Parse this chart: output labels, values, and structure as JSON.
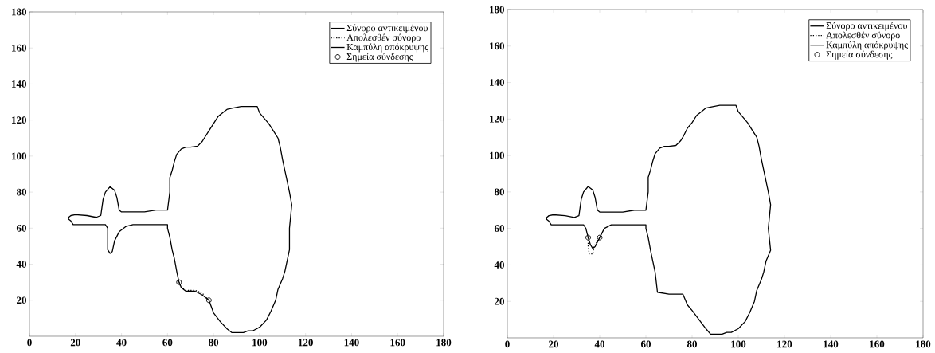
{
  "chart_data": [
    {
      "type": "line",
      "xlim": [
        0,
        180
      ],
      "ylim": [
        0,
        180
      ],
      "xticks": [
        0,
        20,
        40,
        60,
        80,
        100,
        120,
        140,
        160,
        180
      ],
      "yticks": [
        20,
        40,
        60,
        80,
        100,
        120,
        140,
        160,
        180
      ],
      "legend": "top right",
      "grid": false,
      "series": [
        {
          "name": "Σύνορο αντικειμένου",
          "color": "#000000",
          "line_style": "solid",
          "x": [
            65,
            64,
            63,
            62,
            61,
            60,
            60,
            45,
            42,
            39,
            37,
            36,
            35,
            34,
            34,
            33,
            19,
            18,
            17,
            17,
            18,
            20,
            25,
            29,
            31,
            32,
            33,
            35,
            37,
            38,
            39,
            40,
            50,
            55,
            60,
            61,
            61,
            62,
            63,
            64,
            66,
            68,
            70,
            73,
            75,
            76,
            78,
            80,
            82,
            84,
            86,
            88,
            92,
            96,
            99,
            100,
            102,
            104,
            106,
            108,
            109,
            110,
            111,
            112,
            113,
            114,
            113,
            113,
            112,
            111,
            110,
            108,
            107,
            105,
            103,
            100,
            97,
            95,
            93,
            88,
            86,
            83,
            80,
            78
          ],
          "values": [
            30,
            36,
            43,
            48,
            55,
            60,
            62,
            62,
            61,
            58,
            53,
            47,
            46,
            48,
            60,
            62,
            62,
            64,
            65,
            66,
            67,
            67.5,
            67,
            66,
            67,
            76,
            80,
            83,
            81,
            77,
            70,
            69,
            69,
            70,
            70,
            80,
            88,
            92,
            97,
            101,
            104,
            105,
            105,
            105.5,
            108,
            110,
            114,
            118,
            122,
            124,
            126,
            126.5,
            127.5,
            127.5,
            127.5,
            124,
            121,
            118,
            114,
            110,
            105,
            98,
            92,
            86,
            80,
            73,
            60,
            48,
            42,
            36,
            32,
            26,
            20,
            14,
            9,
            5,
            3,
            3,
            2,
            2,
            4,
            8,
            13,
            20
          ]
        },
        {
          "name": "Απολεσθέν σύνορο",
          "color": "#000000",
          "line_style": "dotted",
          "x": [
            65,
            66,
            68,
            72,
            75,
            78
          ],
          "values": [
            30,
            27,
            25.5,
            25.5,
            24,
            20
          ]
        },
        {
          "name": "Καμπύλη απόκρυψης",
          "color": "#000000",
          "line_style": "solid",
          "x": [
            65,
            66,
            68,
            72,
            75,
            78
          ],
          "values": [
            30,
            27,
            25,
            25,
            23,
            20
          ]
        },
        {
          "name": "Σημεία σύνδεσης",
          "type": "scatter",
          "color": "#000000",
          "marker": "circle",
          "x": [
            65,
            78
          ],
          "values": [
            30,
            20
          ]
        }
      ]
    },
    {
      "type": "line",
      "xlim": [
        0,
        180
      ],
      "ylim": [
        0,
        180
      ],
      "xticks": [
        0,
        20,
        40,
        60,
        80,
        100,
        120,
        140,
        160,
        180
      ],
      "yticks": [
        20,
        40,
        60,
        80,
        100,
        120,
        140,
        160,
        180
      ],
      "legend": "top right",
      "grid": false,
      "series": [
        {
          "name": "Σύνορο αντικειμένου",
          "color": "#000000",
          "line_style": "solid",
          "x": [
            40,
            42,
            45,
            60,
            60,
            61,
            62,
            63,
            64,
            65,
            70,
            76,
            78,
            80,
            83,
            86,
            88,
            93,
            95,
            97,
            100,
            103,
            105,
            107,
            108,
            110,
            111,
            112,
            114,
            113,
            114,
            113,
            112,
            111,
            110,
            109,
            108,
            106,
            104,
            102,
            100,
            99,
            96,
            92,
            88,
            86,
            84,
            82,
            80,
            78,
            76,
            75,
            73,
            70,
            68,
            66,
            64,
            63,
            62,
            61,
            61,
            60,
            55,
            50,
            40,
            39,
            38,
            37,
            35,
            33,
            32,
            31,
            29,
            25,
            20,
            18,
            17,
            17,
            18,
            19,
            33,
            34,
            35
          ],
          "values": [
            55,
            60,
            62,
            62,
            60,
            55,
            48,
            42,
            36,
            25,
            24,
            24,
            18,
            15,
            10,
            5,
            2,
            2,
            3,
            3,
            5,
            9,
            14,
            20,
            26,
            32,
            36,
            42,
            48,
            60,
            73,
            80,
            86,
            92,
            98,
            105,
            110,
            114,
            118,
            121,
            124,
            127.5,
            127.5,
            127.5,
            126.5,
            126,
            124,
            122,
            118,
            115,
            110,
            108,
            105.5,
            105,
            105,
            104,
            101,
            97,
            92,
            88,
            80,
            70,
            70,
            69,
            69,
            70,
            77,
            81,
            83,
            80,
            76,
            67,
            66,
            67,
            67.5,
            67,
            66,
            65,
            64,
            62,
            62,
            60,
            55
          ]
        },
        {
          "name": "Απολεσθέν σύνορο",
          "color": "#000000",
          "line_style": "dotted",
          "x": [
            35,
            35,
            35.5,
            37,
            37.5,
            40
          ],
          "values": [
            55,
            50,
            46,
            46,
            50,
            55
          ]
        },
        {
          "name": "Καμπύλη απόκρυψης",
          "color": "#000000",
          "line_style": "solid",
          "x": [
            35,
            36,
            37,
            38,
            40
          ],
          "values": [
            55,
            51,
            49,
            50,
            55
          ]
        },
        {
          "name": "Σημεία σύνδεσης",
          "type": "scatter",
          "color": "#000000",
          "marker": "circle",
          "x": [
            35,
            40
          ],
          "values": [
            55,
            55
          ]
        }
      ]
    }
  ]
}
